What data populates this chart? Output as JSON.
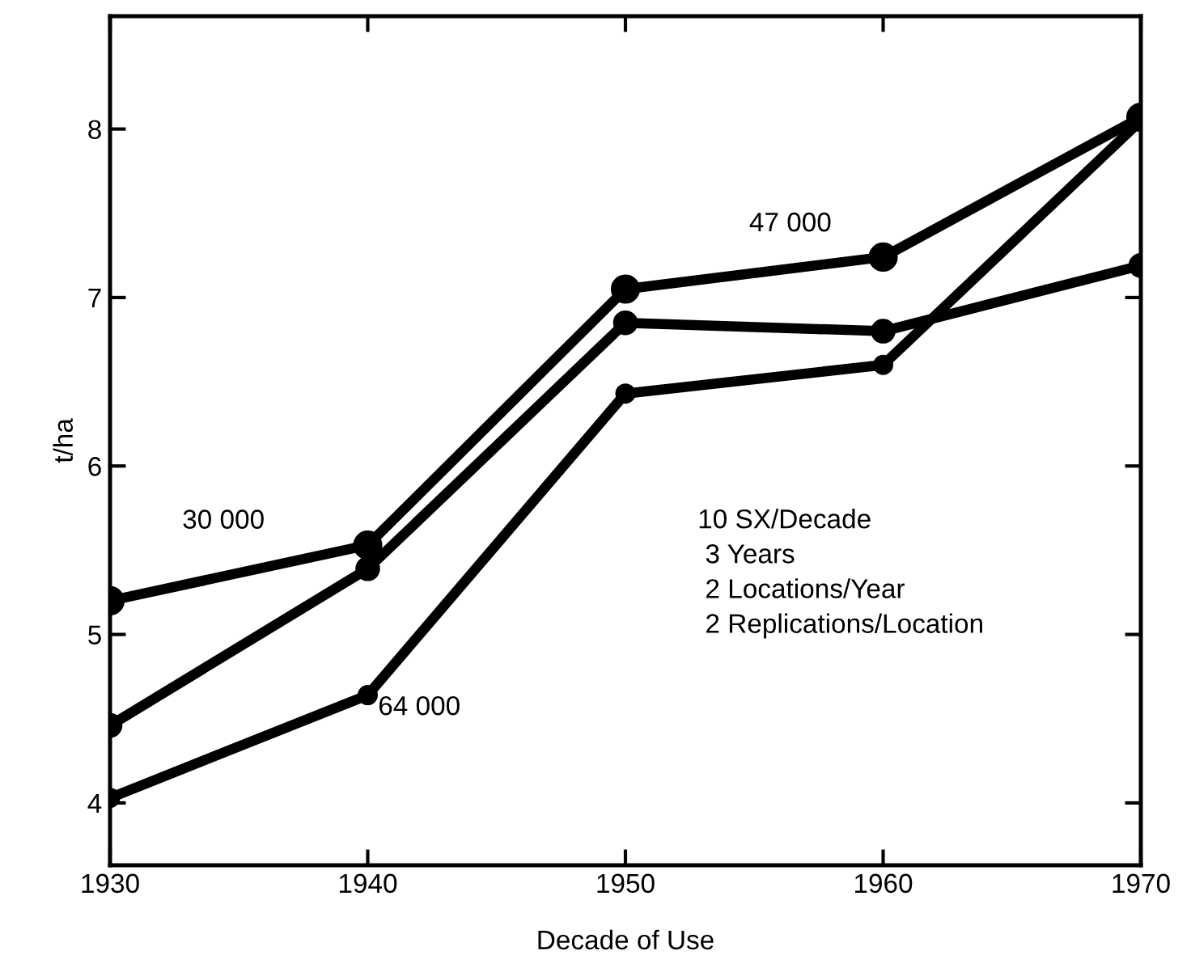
{
  "chart_data": {
    "type": "line",
    "xlabel": "Decade of Use",
    "ylabel": "t/ha",
    "x": [
      1930,
      1940,
      1950,
      1960,
      1970
    ],
    "series": [
      {
        "color": "#000000",
        "values": [
          5.2,
          5.53,
          7.05,
          7.24,
          8.07
        ]
      },
      {
        "color": "#000000",
        "values": [
          4.46,
          5.39,
          6.85,
          6.8,
          7.19
        ]
      },
      {
        "color": "#000000",
        "values": [
          4.03,
          4.64,
          6.43,
          6.6,
          8.05
        ]
      }
    ],
    "xlim": [
      1930,
      1970
    ],
    "xticks": [
      1930,
      1940,
      1950,
      1960,
      1970
    ],
    "ylim": [
      3.63,
      8.67
    ],
    "yticks": [
      4,
      5,
      6,
      7,
      8
    ],
    "marker": "circle",
    "line_style": "solid",
    "grid": false,
    "annotations": [
      "30 000",
      "64 000",
      "47 000",
      "10 SX/Decade\n 3 Years\n 2 Locations/Year\n 2 Replications/Location"
    ]
  }
}
